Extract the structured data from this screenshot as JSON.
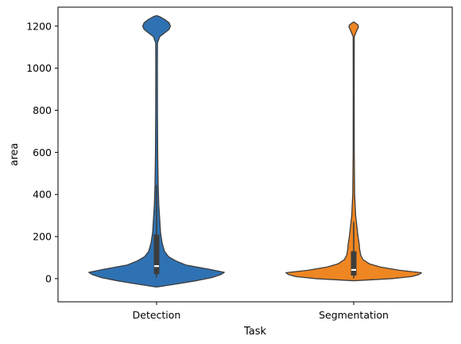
{
  "chart_data": {
    "type": "violin",
    "title": "",
    "xlabel": "Task",
    "ylabel": "area",
    "ylim": [
      -110,
      1290
    ],
    "yticks": [
      0,
      200,
      400,
      600,
      800,
      1000,
      1200
    ],
    "categories": [
      "Detection",
      "Segmentation"
    ],
    "grid": false,
    "legend": "none",
    "series": [
      {
        "name": "Detection",
        "color": "#2f72b3",
        "median": 60,
        "q1": 22,
        "q3": 210,
        "whisker_low": 5,
        "whisker_high": 445,
        "density": [
          [
            -40,
            0.0
          ],
          [
            -25,
            0.26
          ],
          [
            -10,
            0.5
          ],
          [
            5,
            0.7
          ],
          [
            20,
            0.82
          ],
          [
            30,
            0.86
          ],
          [
            45,
            0.66
          ],
          [
            65,
            0.37
          ],
          [
            85,
            0.24
          ],
          [
            105,
            0.15
          ],
          [
            130,
            0.1
          ],
          [
            170,
            0.07
          ],
          [
            220,
            0.05
          ],
          [
            280,
            0.04
          ],
          [
            350,
            0.028
          ],
          [
            450,
            0.02
          ],
          [
            600,
            0.014
          ],
          [
            800,
            0.011
          ],
          [
            1000,
            0.01
          ],
          [
            1120,
            0.011
          ],
          [
            1150,
            0.04
          ],
          [
            1170,
            0.11
          ],
          [
            1185,
            0.16
          ],
          [
            1200,
            0.175
          ],
          [
            1215,
            0.16
          ],
          [
            1230,
            0.11
          ],
          [
            1245,
            0.04
          ],
          [
            1250,
            0.0
          ]
        ]
      },
      {
        "name": "Segmentation",
        "color": "#ee8622",
        "median": 42,
        "q1": 15,
        "q3": 130,
        "whisker_low": 2,
        "whisker_high": 270,
        "density": [
          [
            -10,
            0.0
          ],
          [
            0,
            0.48
          ],
          [
            10,
            0.74
          ],
          [
            20,
            0.83
          ],
          [
            28,
            0.86
          ],
          [
            40,
            0.58
          ],
          [
            55,
            0.34
          ],
          [
            70,
            0.2
          ],
          [
            90,
            0.12
          ],
          [
            110,
            0.09
          ],
          [
            140,
            0.075
          ],
          [
            165,
            0.07
          ],
          [
            200,
            0.055
          ],
          [
            250,
            0.04
          ],
          [
            300,
            0.025
          ],
          [
            400,
            0.012
          ],
          [
            600,
            0.007
          ],
          [
            900,
            0.006
          ],
          [
            1150,
            0.007
          ],
          [
            1180,
            0.04
          ],
          [
            1195,
            0.06
          ],
          [
            1205,
            0.055
          ],
          [
            1215,
            0.02
          ],
          [
            1220,
            0.0
          ]
        ]
      }
    ]
  }
}
